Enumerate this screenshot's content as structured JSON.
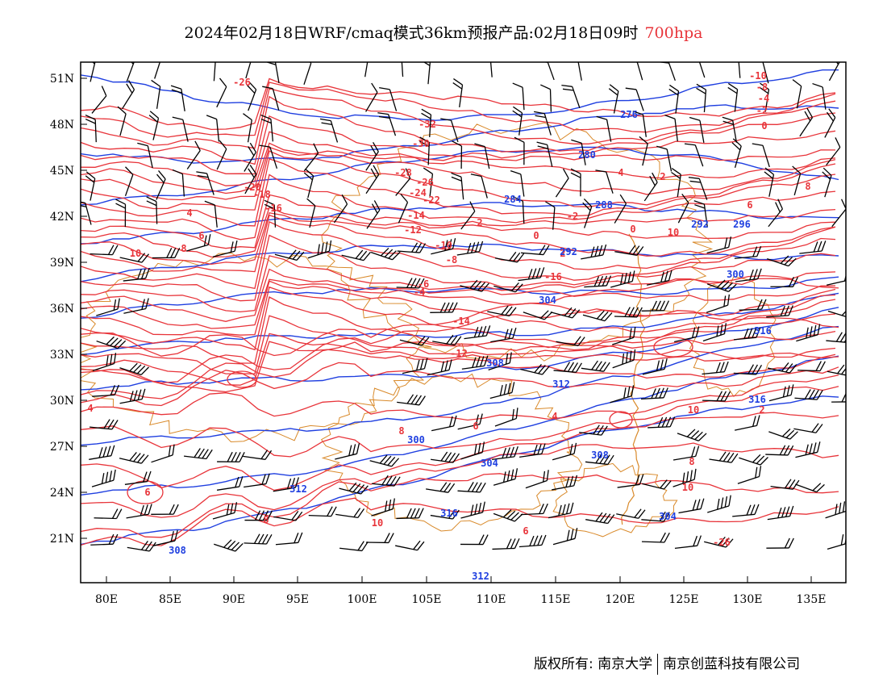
{
  "title": {
    "text": "2024年02月18日WRF/cmaq模式36km预报产品:02月18日09时",
    "level": "700hpa"
  },
  "axes": {
    "lat_labels": [
      "51N",
      "48N",
      "45N",
      "42N",
      "39N",
      "36N",
      "33N",
      "30N",
      "27N",
      "24N",
      "21N"
    ],
    "lon_labels": [
      "80E",
      "85E",
      "90E",
      "95E",
      "100E",
      "105E",
      "110E",
      "115E",
      "120E",
      "125E",
      "130E",
      "135E"
    ]
  },
  "colors": {
    "temperature": "#e8343a",
    "geopotential": "#1f3fe0",
    "boundary": "#d98a2b",
    "wind": "#000000",
    "title_level": "#e8343a"
  },
  "map_data": {
    "temperature_labels": [
      "-26",
      "-32",
      "-30",
      "-28",
      "-26",
      "-24",
      "-22",
      "-20",
      "-18",
      "-16",
      "-14",
      "-12",
      "-10",
      "-8",
      "-6",
      "-4",
      "-2",
      "0",
      "2",
      "4",
      "6",
      "8",
      "10",
      "-16",
      "-14",
      "-12",
      "-10",
      "-8",
      "-4",
      "-2",
      "0",
      "2",
      "4",
      "6",
      "8",
      "10",
      "0",
      "2",
      "4",
      "6",
      "8",
      "10",
      "2",
      "4",
      "6",
      "8",
      "10",
      "6",
      "8",
      "10"
    ],
    "height_labels": [
      "276",
      "280",
      "284",
      "288",
      "292",
      "296",
      "300",
      "304",
      "308",
      "312",
      "316",
      "300",
      "304",
      "308",
      "312",
      "316",
      "304",
      "308",
      "312",
      "316",
      "292"
    ],
    "wind_symbol": "wind-barb"
  },
  "footer": {
    "copyright": "版权所有: 南京大学",
    "company": "南京创蓝科技有限公司"
  }
}
